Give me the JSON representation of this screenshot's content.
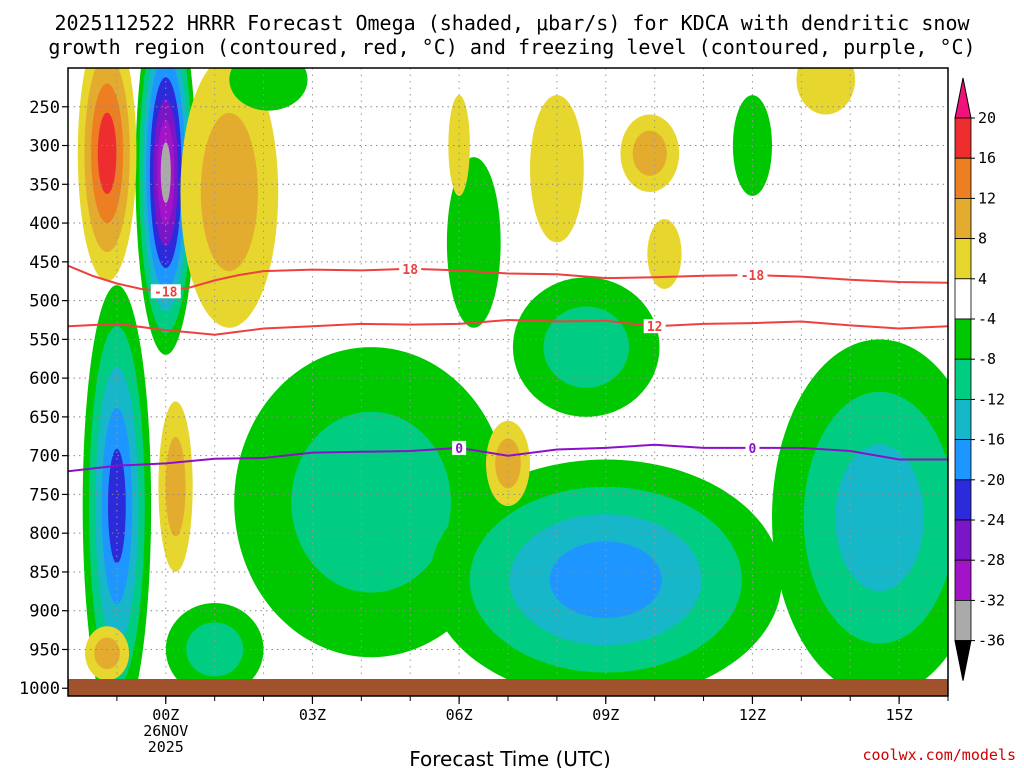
{
  "chart_data": {
    "type": "heatmap",
    "title_line1": "2025112522 HRRR Forecast Omega (shaded, μbar/s) for KDCA with dendritic snow",
    "title_line2": "growth region (contoured, red, °C) and freezing level (contoured, purple, °C)",
    "xlabel": "Forecast Time (UTC)",
    "ylabel": "",
    "credit": "coolwx.com/models",
    "x_ticks": [
      {
        "label": "00Z",
        "hour": 0,
        "sub1": "26NOV",
        "sub2": "2025"
      },
      {
        "label": "03Z",
        "hour": 3,
        "sub1": "",
        "sub2": ""
      },
      {
        "label": "06Z",
        "hour": 6,
        "sub1": "",
        "sub2": ""
      },
      {
        "label": "09Z",
        "hour": 9,
        "sub1": "",
        "sub2": ""
      },
      {
        "label": "12Z",
        "hour": 12,
        "sub1": "",
        "sub2": ""
      },
      {
        "label": "15Z",
        "hour": 15,
        "sub1": "",
        "sub2": ""
      }
    ],
    "x_range_hours": [
      -2,
      16
    ],
    "y_levels": [
      250,
      300,
      350,
      400,
      450,
      500,
      550,
      600,
      650,
      700,
      750,
      800,
      850,
      900,
      950,
      1000
    ],
    "y_range_hpa": [
      200,
      1010
    ],
    "colorbar": {
      "labels": [
        "20",
        "16",
        "12",
        "8",
        "4",
        "-4",
        "-8",
        "-12",
        "-16",
        "-20",
        "-24",
        "-28",
        "-32",
        "-36"
      ],
      "colors": [
        "#f0117a",
        "#ee2e2e",
        "#ee7e22",
        "#e3ac2e",
        "#e6d62e",
        "#ffffff",
        "#00c800",
        "#00cd82",
        "#16b7c8",
        "#1e96ff",
        "#2b2bdb",
        "#7b16c8",
        "#a313c8",
        "#aaaaaa",
        "#000000"
      ]
    },
    "contours": [
      {
        "name": "dgz_minus18",
        "label": "-18",
        "color": "#ee4040",
        "points": [
          [
            -2,
            455
          ],
          [
            -1.5,
            468
          ],
          [
            -1,
            478
          ],
          [
            -0.5,
            485
          ],
          [
            0,
            488
          ],
          [
            0.5,
            483
          ],
          [
            1,
            474
          ],
          [
            1.5,
            467
          ],
          [
            2,
            462
          ],
          [
            3,
            460
          ],
          [
            4,
            461
          ],
          [
            5,
            459
          ],
          [
            6,
            461
          ],
          [
            7,
            465
          ],
          [
            8,
            466
          ],
          [
            9,
            471
          ],
          [
            10,
            470
          ],
          [
            11,
            468
          ],
          [
            12,
            467
          ],
          [
            13,
            469
          ],
          [
            14,
            473
          ],
          [
            15,
            476
          ],
          [
            16,
            477
          ]
        ]
      },
      {
        "name": "dgz_minus12",
        "label": "-12",
        "color": "#ee4040",
        "points": [
          [
            -2,
            533
          ],
          [
            -1,
            530
          ],
          [
            0,
            538
          ],
          [
            0.5,
            541
          ],
          [
            1,
            544
          ],
          [
            1.5,
            540
          ],
          [
            2,
            536
          ],
          [
            3,
            533
          ],
          [
            4,
            530
          ],
          [
            5,
            531
          ],
          [
            6,
            530
          ],
          [
            7,
            525
          ],
          [
            8,
            527
          ],
          [
            9,
            526
          ],
          [
            10,
            533
          ],
          [
            11,
            530
          ],
          [
            12,
            529
          ],
          [
            13,
            527
          ],
          [
            14,
            532
          ],
          [
            15,
            536
          ],
          [
            16,
            533
          ]
        ]
      },
      {
        "name": "freezing_level",
        "label": "0",
        "color": "#8b10c8",
        "points": [
          [
            -2,
            720
          ],
          [
            -1,
            713
          ],
          [
            0,
            710
          ],
          [
            1,
            704
          ],
          [
            2,
            703
          ],
          [
            3,
            696
          ],
          [
            4,
            695
          ],
          [
            5,
            694
          ],
          [
            6,
            690
          ],
          [
            7,
            700
          ],
          [
            8,
            692
          ],
          [
            9,
            690
          ],
          [
            10,
            686
          ],
          [
            11,
            690
          ],
          [
            12,
            690
          ],
          [
            13,
            690
          ],
          [
            14,
            694
          ],
          [
            15,
            705
          ],
          [
            16,
            705
          ]
        ]
      }
    ],
    "contour_label_positions": [
      {
        "name": "dgz_minus18",
        "hour": 0,
        "text": "-18"
      },
      {
        "name": "dgz_minus18",
        "hour": 5,
        "text": "18"
      },
      {
        "name": "dgz_minus18",
        "hour": 12,
        "text": "-18"
      },
      {
        "name": "dgz_minus12",
        "hour": 10,
        "text": "12"
      },
      {
        "name": "freezing_level",
        "hour": 6,
        "text": "0"
      },
      {
        "name": "freezing_level",
        "hour": 12,
        "text": "0"
      }
    ],
    "omega_blobs": [
      {
        "name": "updraft-core-left",
        "hour_center": 0,
        "hpa_center": 335,
        "hour_radius": 0.62,
        "hpa_radius": 235,
        "levels": [
          -8,
          -12,
          -16,
          -20,
          -24,
          -28,
          -32,
          -36
        ]
      },
      {
        "name": "updraft-lowlevel-left",
        "hour_center": -1,
        "hpa_center": 765,
        "hour_radius": 0.7,
        "hpa_radius": 285,
        "levels": [
          -8,
          -12,
          -16,
          -20,
          -24
        ]
      },
      {
        "name": "descent-upper-left",
        "hour_center": -1.2,
        "hpa_center": 310,
        "hour_radius": 0.6,
        "hpa_radius": 165,
        "levels": [
          4,
          8,
          12,
          16
        ]
      },
      {
        "name": "descent-upper-mid",
        "hour_center": 1.3,
        "hpa_center": 360,
        "hour_radius": 1.0,
        "hpa_radius": 175,
        "levels": [
          4,
          8
        ]
      },
      {
        "name": "descent-low-left",
        "hour_center": 0.2,
        "hpa_center": 740,
        "hour_radius": 0.35,
        "hpa_radius": 110,
        "levels": [
          4,
          8
        ]
      },
      {
        "name": "descent-sfc-left",
        "hour_center": -1.2,
        "hpa_center": 955,
        "hour_radius": 0.45,
        "hpa_radius": 35,
        "levels": [
          4,
          8
        ]
      },
      {
        "name": "updraft-sfc-1",
        "hour_center": 1.0,
        "hpa_center": 950,
        "hour_radius": 1.0,
        "hpa_radius": 60,
        "levels": [
          -8,
          -12
        ]
      },
      {
        "name": "updraft-lowlevel-mid",
        "hour_center": 4.2,
        "hpa_center": 760,
        "hour_radius": 2.8,
        "hpa_radius": 200,
        "levels": [
          -8,
          -12
        ]
      },
      {
        "name": "updraft-core-09z",
        "hour_center": 9.0,
        "hpa_center": 860,
        "hour_radius": 3.6,
        "hpa_radius": 155,
        "levels": [
          -8,
          -12,
          -16,
          -20
        ]
      },
      {
        "name": "updraft-lowlevel-right",
        "hour_center": 14.6,
        "hpa_center": 780,
        "hour_radius": 2.2,
        "hpa_radius": 230,
        "levels": [
          -8,
          -12,
          -16
        ]
      },
      {
        "name": "updraft-mid-06z",
        "hour_center": 6.3,
        "hpa_center": 425,
        "hour_radius": 0.55,
        "hpa_radius": 110,
        "levels": [
          -8
        ]
      },
      {
        "name": "updraft-mid-09z",
        "hour_center": 8.6,
        "hpa_center": 560,
        "hour_radius": 1.5,
        "hpa_radius": 90,
        "levels": [
          -8,
          -12
        ]
      },
      {
        "name": "descent-upper-09z",
        "hour_center": 8.0,
        "hpa_center": 330,
        "hour_radius": 0.55,
        "hpa_radius": 95,
        "levels": [
          4
        ]
      },
      {
        "name": "descent-upper-10z",
        "hour_center": 9.9,
        "hpa_center": 310,
        "hour_radius": 0.6,
        "hpa_radius": 50,
        "levels": [
          4,
          8
        ]
      },
      {
        "name": "descent-upper-06z",
        "hour_center": 6.0,
        "hpa_center": 300,
        "hour_radius": 0.22,
        "hpa_radius": 65,
        "levels": [
          4
        ]
      },
      {
        "name": "descent-upper-10z-low",
        "hour_center": 10.2,
        "hpa_center": 440,
        "hour_radius": 0.35,
        "hpa_radius": 45,
        "levels": [
          4
        ]
      },
      {
        "name": "descent-low-07z",
        "hour_center": 7.0,
        "hpa_center": 710,
        "hour_radius": 0.45,
        "hpa_radius": 55,
        "levels": [
          4,
          8
        ]
      },
      {
        "name": "descent-top-13z",
        "hour_center": 13.5,
        "hpa_center": 215,
        "hour_radius": 0.6,
        "hpa_radius": 45,
        "levels": [
          4
        ]
      },
      {
        "name": "updraft-upper-12z",
        "hour_center": 12.0,
        "hpa_center": 300,
        "hour_radius": 0.4,
        "hpa_radius": 65,
        "levels": [
          -8
        ]
      },
      {
        "name": "updraft-top-02z",
        "hour_center": 2.1,
        "hpa_center": 215,
        "hour_radius": 0.8,
        "hpa_radius": 40,
        "levels": [
          -8
        ]
      }
    ]
  }
}
